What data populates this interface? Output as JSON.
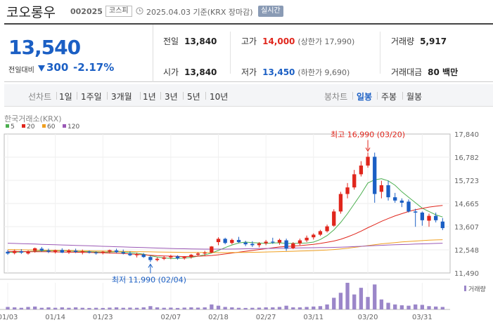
{
  "header": {
    "name": "코오롱우",
    "code": "002025",
    "market": "코스피",
    "date_basis": "2025.04.03  기준(KRX 장마감)",
    "live_badge": "실시간"
  },
  "quote": {
    "price": "13,540",
    "change_label": "전일대비",
    "change": "300",
    "change_pct": "-2.17%",
    "prev_close": {
      "label": "전일",
      "value": "13,840"
    },
    "open": {
      "label": "시가",
      "value": "13,840"
    },
    "high": {
      "label": "고가",
      "value": "14,000",
      "sub": "(상한가 17,990)"
    },
    "low": {
      "label": "저가",
      "value": "13,450",
      "sub": "(하한가 9,690)"
    },
    "volume": {
      "label": "거래량",
      "value": "5,917"
    },
    "amount": {
      "label": "거래대금",
      "value": "80 백만"
    },
    "colors": {
      "up": "#e0261c",
      "down": "#1b5fc4"
    }
  },
  "toolbar": {
    "line_label": "선차트",
    "line_periods": [
      "1일",
      "1주일",
      "3개월",
      "1년",
      "3년",
      "5년",
      "10년"
    ],
    "candle_label": "봉차트",
    "candle_periods": [
      "일봉",
      "주봉",
      "월봉"
    ],
    "active_candle": "일봉"
  },
  "chart_data": {
    "type": "candlestick",
    "exchange": "한국거래소(KRX)",
    "legend": [
      {
        "name": "5",
        "color": "#4caf50"
      },
      {
        "name": "20",
        "color": "#e0261c"
      },
      {
        "name": "60",
        "color": "#f0a020"
      },
      {
        "name": "120",
        "color": "#9b59b6"
      }
    ],
    "y_ticks": [
      "17,840",
      "16,782",
      "15,723",
      "14,665",
      "13,607",
      "12,548",
      "11,490"
    ],
    "ylim": [
      11490,
      17840
    ],
    "x_ticks": [
      "01/03",
      "01/14",
      "01/23",
      "02/07",
      "02/18",
      "02/27",
      "03/11",
      "03/20",
      "03/31"
    ],
    "high_annotation": "최고 16,990 (03/20)",
    "low_annotation": "최저 11,990 (02/04)",
    "volume_label": "거래량",
    "colors": {
      "up": "#e0261c",
      "down": "#1b5fc4"
    },
    "candles": [
      {
        "o": 12460,
        "h": 12540,
        "l": 12320,
        "c": 12380
      },
      {
        "o": 12400,
        "h": 12560,
        "l": 12340,
        "c": 12500
      },
      {
        "o": 12480,
        "h": 12580,
        "l": 12360,
        "c": 12420
      },
      {
        "o": 12380,
        "h": 12520,
        "l": 12330,
        "c": 12480
      },
      {
        "o": 12500,
        "h": 12650,
        "l": 12420,
        "c": 12620
      },
      {
        "o": 12600,
        "h": 12680,
        "l": 12460,
        "c": 12520
      },
      {
        "o": 12520,
        "h": 12600,
        "l": 12400,
        "c": 12460
      },
      {
        "o": 12460,
        "h": 12560,
        "l": 12380,
        "c": 12530
      },
      {
        "o": 12540,
        "h": 12620,
        "l": 12400,
        "c": 12420
      },
      {
        "o": 12430,
        "h": 12580,
        "l": 12360,
        "c": 12520
      },
      {
        "o": 12510,
        "h": 12600,
        "l": 12400,
        "c": 12450
      },
      {
        "o": 12440,
        "h": 12560,
        "l": 12340,
        "c": 12480
      },
      {
        "o": 12470,
        "h": 12520,
        "l": 12380,
        "c": 12420
      },
      {
        "o": 12420,
        "h": 12480,
        "l": 12330,
        "c": 12400
      },
      {
        "o": 12410,
        "h": 12500,
        "l": 12340,
        "c": 12460
      },
      {
        "o": 12460,
        "h": 12560,
        "l": 12380,
        "c": 12530
      },
      {
        "o": 12520,
        "h": 12600,
        "l": 12400,
        "c": 12440
      },
      {
        "o": 12440,
        "h": 12560,
        "l": 12340,
        "c": 12380
      },
      {
        "o": 12380,
        "h": 12480,
        "l": 12260,
        "c": 12300
      },
      {
        "o": 12300,
        "h": 12420,
        "l": 12200,
        "c": 12340
      },
      {
        "o": 12330,
        "h": 12400,
        "l": 12180,
        "c": 12220
      },
      {
        "o": 12220,
        "h": 12280,
        "l": 11990,
        "c": 12080
      },
      {
        "o": 12080,
        "h": 12200,
        "l": 12020,
        "c": 12140
      },
      {
        "o": 12140,
        "h": 12260,
        "l": 12080,
        "c": 12200
      },
      {
        "o": 12200,
        "h": 12320,
        "l": 12120,
        "c": 12260
      },
      {
        "o": 12250,
        "h": 12300,
        "l": 12100,
        "c": 12160
      },
      {
        "o": 12160,
        "h": 12260,
        "l": 12100,
        "c": 12220
      },
      {
        "o": 12220,
        "h": 12360,
        "l": 12150,
        "c": 12320
      },
      {
        "o": 12320,
        "h": 12440,
        "l": 12240,
        "c": 12380
      },
      {
        "o": 12380,
        "h": 12500,
        "l": 12280,
        "c": 12420
      },
      {
        "o": 12420,
        "h": 12720,
        "l": 12400,
        "c": 12700
      },
      {
        "o": 12900,
        "h": 13120,
        "l": 12760,
        "c": 13050
      },
      {
        "o": 13050,
        "h": 13100,
        "l": 12800,
        "c": 12860
      },
      {
        "o": 12860,
        "h": 13060,
        "l": 12800,
        "c": 13000
      },
      {
        "o": 13000,
        "h": 13140,
        "l": 12860,
        "c": 12900
      },
      {
        "o": 12880,
        "h": 12960,
        "l": 12720,
        "c": 12800
      },
      {
        "o": 12820,
        "h": 12940,
        "l": 12680,
        "c": 12760
      },
      {
        "o": 12760,
        "h": 12900,
        "l": 12660,
        "c": 12840
      },
      {
        "o": 12850,
        "h": 13000,
        "l": 12760,
        "c": 12920
      },
      {
        "o": 12920,
        "h": 13100,
        "l": 12820,
        "c": 12880
      },
      {
        "o": 12880,
        "h": 13060,
        "l": 12780,
        "c": 13000
      },
      {
        "o": 12980,
        "h": 13060,
        "l": 12500,
        "c": 12600
      },
      {
        "o": 12620,
        "h": 12900,
        "l": 12580,
        "c": 12840
      },
      {
        "o": 12840,
        "h": 13060,
        "l": 12760,
        "c": 12980
      },
      {
        "o": 12980,
        "h": 13200,
        "l": 12900,
        "c": 13100
      },
      {
        "o": 13120,
        "h": 13300,
        "l": 13020,
        "c": 13240
      },
      {
        "o": 13240,
        "h": 13460,
        "l": 13180,
        "c": 13400
      },
      {
        "o": 13400,
        "h": 13700,
        "l": 13340,
        "c": 13620
      },
      {
        "o": 13650,
        "h": 14400,
        "l": 13600,
        "c": 14300
      },
      {
        "o": 14300,
        "h": 15200,
        "l": 14200,
        "c": 15100
      },
      {
        "o": 15100,
        "h": 15600,
        "l": 14900,
        "c": 15400
      },
      {
        "o": 15400,
        "h": 16200,
        "l": 15300,
        "c": 16000
      },
      {
        "o": 16000,
        "h": 16600,
        "l": 15900,
        "c": 16400
      },
      {
        "o": 16400,
        "h": 16990,
        "l": 16300,
        "c": 16800
      },
      {
        "o": 16800,
        "h": 16990,
        "l": 14700,
        "c": 15100
      },
      {
        "o": 15200,
        "h": 15700,
        "l": 14900,
        "c": 15500
      },
      {
        "o": 15500,
        "h": 15700,
        "l": 14800,
        "c": 14950
      },
      {
        "o": 14950,
        "h": 15150,
        "l": 14700,
        "c": 14800
      },
      {
        "o": 14800,
        "h": 14900,
        "l": 14500,
        "c": 14700
      },
      {
        "o": 14750,
        "h": 14850,
        "l": 14250,
        "c": 14300
      },
      {
        "o": 14300,
        "h": 14420,
        "l": 13600,
        "c": 14250
      },
      {
        "o": 14250,
        "h": 14300,
        "l": 13650,
        "c": 13900
      },
      {
        "o": 13880,
        "h": 14200,
        "l": 13600,
        "c": 14100
      },
      {
        "o": 14100,
        "h": 14250,
        "l": 13800,
        "c": 13900
      },
      {
        "o": 13840,
        "h": 14000,
        "l": 13450,
        "c": 13540
      }
    ],
    "ma5": [
      12430,
      12440,
      12450,
      12470,
      12480,
      12500,
      12510,
      12500,
      12510,
      12490,
      12480,
      12470,
      12460,
      12450,
      12440,
      12450,
      12460,
      12450,
      12420,
      12390,
      12350,
      12280,
      12220,
      12180,
      12150,
      12160,
      12170,
      12200,
      12260,
      12320,
      12400,
      12520,
      12650,
      12770,
      12860,
      12900,
      12880,
      12860,
      12840,
      12860,
      12870,
      12840,
      12840,
      12850,
      12860,
      12900,
      13020,
      13200,
      13460,
      13800,
      14200,
      14650,
      15100,
      15600,
      15750,
      15800,
      15700,
      15500,
      15200,
      14950,
      14700,
      14450,
      14300,
      14150,
      14050
    ],
    "ma20": [
      12480,
      12470,
      12470,
      12460,
      12460,
      12460,
      12460,
      12450,
      12450,
      12440,
      12440,
      12430,
      12430,
      12420,
      12410,
      12400,
      12390,
      12380,
      12360,
      12340,
      12320,
      12300,
      12280,
      12270,
      12260,
      12250,
      12240,
      12250,
      12260,
      12270,
      12290,
      12320,
      12360,
      12400,
      12440,
      12480,
      12520,
      12560,
      12600,
      12640,
      12680,
      12700,
      12720,
      12740,
      12770,
      12800,
      12840,
      12890,
      12950,
      13030,
      13140,
      13260,
      13400,
      13560,
      13700,
      13850,
      13980,
      14100,
      14200,
      14300,
      14380,
      14440,
      14500,
      14540,
      14580
    ],
    "ma60": [
      12560,
      12555,
      12550,
      12545,
      12540,
      12535,
      12530,
      12525,
      12520,
      12515,
      12510,
      12505,
      12500,
      12495,
      12490,
      12485,
      12480,
      12475,
      12470,
      12465,
      12460,
      12455,
      12450,
      12445,
      12440,
      12435,
      12430,
      12428,
      12426,
      12424,
      12422,
      12420,
      12420,
      12422,
      12425,
      12430,
      12435,
      12440,
      12448,
      12456,
      12464,
      12472,
      12480,
      12490,
      12500,
      12512,
      12525,
      12540,
      12560,
      12590,
      12620,
      12660,
      12700,
      12740,
      12780,
      12820,
      12850,
      12880,
      12910,
      12930,
      12950,
      12970,
      12990,
      13000,
      13010
    ],
    "ma120": [
      12850,
      12840,
      12830,
      12820,
      12810,
      12800,
      12790,
      12780,
      12770,
      12760,
      12750,
      12740,
      12730,
      12720,
      12710,
      12700,
      12690,
      12680,
      12670,
      12660,
      12650,
      12640,
      12630,
      12620,
      12610,
      12600,
      12595,
      12590,
      12585,
      12582,
      12580,
      12580,
      12582,
      12585,
      12590,
      12595,
      12600,
      12605,
      12610,
      12615,
      12620,
      12625,
      12630,
      12635,
      12640,
      12645,
      12650,
      12655,
      12660,
      12670,
      12680,
      12695,
      12710,
      12725,
      12740,
      12755,
      12770,
      12780,
      12790,
      12800,
      12810,
      12820,
      12830,
      12840,
      12850
    ],
    "volume": [
      30,
      25,
      20,
      30,
      35,
      20,
      25,
      20,
      25,
      20,
      25,
      20,
      18,
      20,
      18,
      22,
      25,
      20,
      22,
      20,
      25,
      40,
      25,
      20,
      22,
      18,
      22,
      25,
      22,
      25,
      60,
      45,
      30,
      25,
      20,
      18,
      20,
      22,
      25,
      25,
      30,
      45,
      25,
      25,
      30,
      35,
      40,
      60,
      140,
      200,
      320,
      180,
      260,
      150,
      300,
      120,
      80,
      60,
      50,
      45,
      60,
      55,
      40,
      35,
      30
    ]
  }
}
